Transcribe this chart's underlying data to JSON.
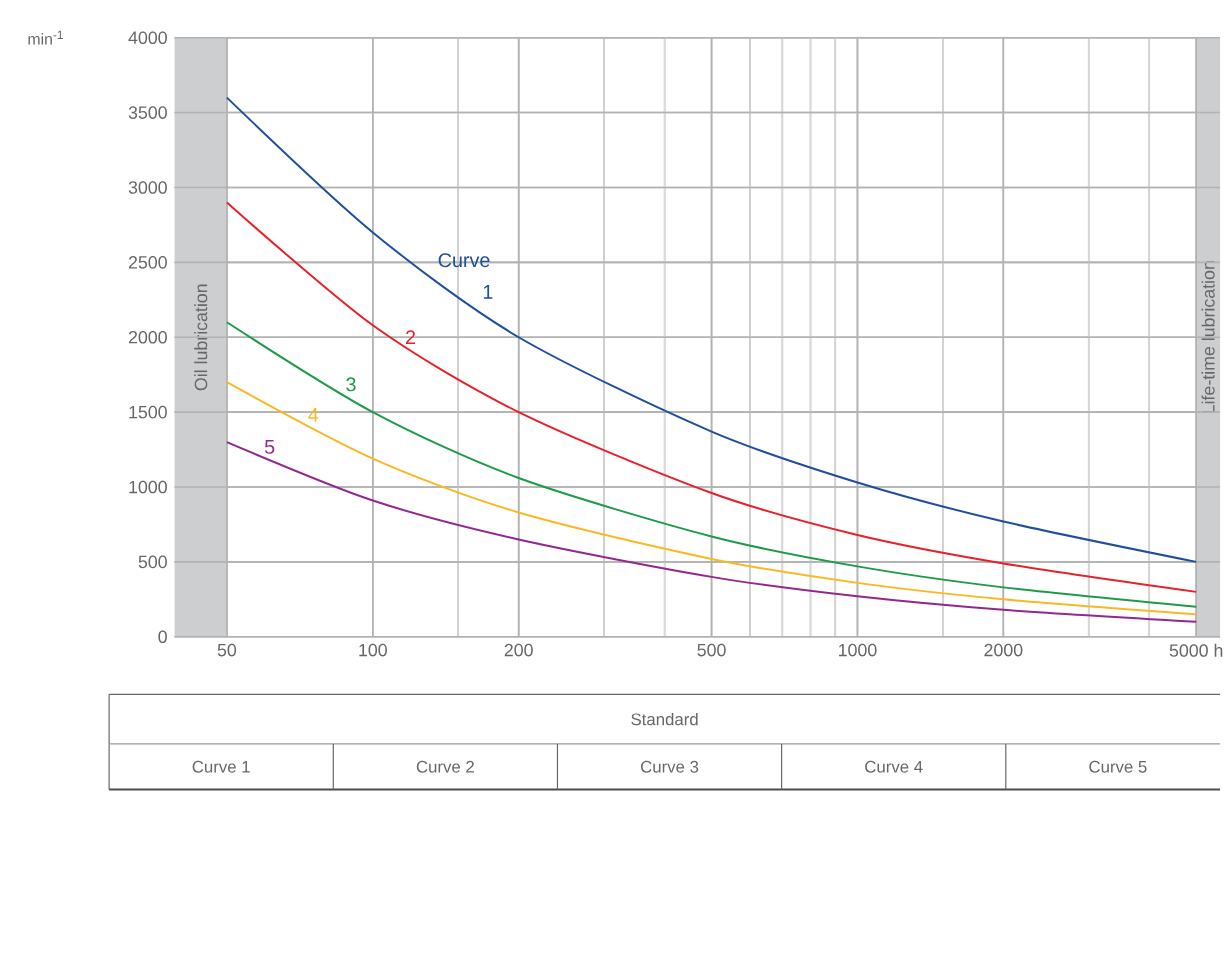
{
  "chart_data": {
    "type": "line",
    "xlabel": null,
    "ylabel": "min$^{-1}$",
    "log": "x",
    "x": [
      50,
      100,
      200,
      500,
      1000,
      2000,
      5000
    ],
    "series": [
      {
        "name": "1",
        "color": "#1f4e9c",
        "values": [
          3600,
          2700,
          2000,
          1370,
          1030,
          770,
          500
        ]
      },
      {
        "name": "2",
        "color": "#e8202a",
        "values": [
          2900,
          2080,
          1500,
          960,
          680,
          490,
          300
        ]
      },
      {
        "name": "3",
        "color": "#1e9a48",
        "values": [
          2100,
          1500,
          1060,
          670,
          470,
          330,
          200
        ]
      },
      {
        "name": "4",
        "color": "#fbb820",
        "values": [
          1700,
          1190,
          830,
          520,
          360,
          250,
          150
        ]
      },
      {
        "name": "5",
        "color": "#92278f",
        "values": [
          1300,
          910,
          650,
          400,
          270,
          180,
          100
        ]
      }
    ],
    "xlim": [
      39,
      5600
    ],
    "ylim": [
      0,
      4000
    ],
    "xticks": [
      50,
      100,
      {
        "value": 150,
        "label": null
      },
      200,
      {
        "value": 300,
        "label": null
      },
      {
        "value": 400,
        "label": null
      },
      500,
      {
        "value": 600,
        "label": null
      },
      {
        "value": 700,
        "label": null
      },
      {
        "value": 800,
        "label": null
      },
      {
        "value": 900,
        "label": null
      },
      1000,
      {
        "value": 1500,
        "label": null
      },
      2000,
      {
        "value": 3000,
        "label": null
      },
      {
        "value": 4000,
        "label": null
      },
      {
        "value": 5000,
        "label": "5000 h"
      }
    ],
    "yticks": [
      0,
      500,
      1000,
      1500,
      2000,
      2500,
      3000,
      3500,
      4000
    ],
    "grid": true,
    "marker": "none",
    "line_style": "solid",
    "bands": [
      {
        "axis": "x",
        "from": 39,
        "to": 50,
        "label": "Oil lubrication",
        "color": "#cdcecf"
      },
      {
        "axis": "x",
        "from": 5000,
        "to": 5600,
        "label": "Life-time lubrication",
        "color": "#cdcecf"
      }
    ],
    "annotations": [
      "Curve",
      "Standard",
      "Curve 1",
      "Curve 2",
      "Curve 3",
      "Curve 4",
      "Curve 5"
    ]
  }
}
